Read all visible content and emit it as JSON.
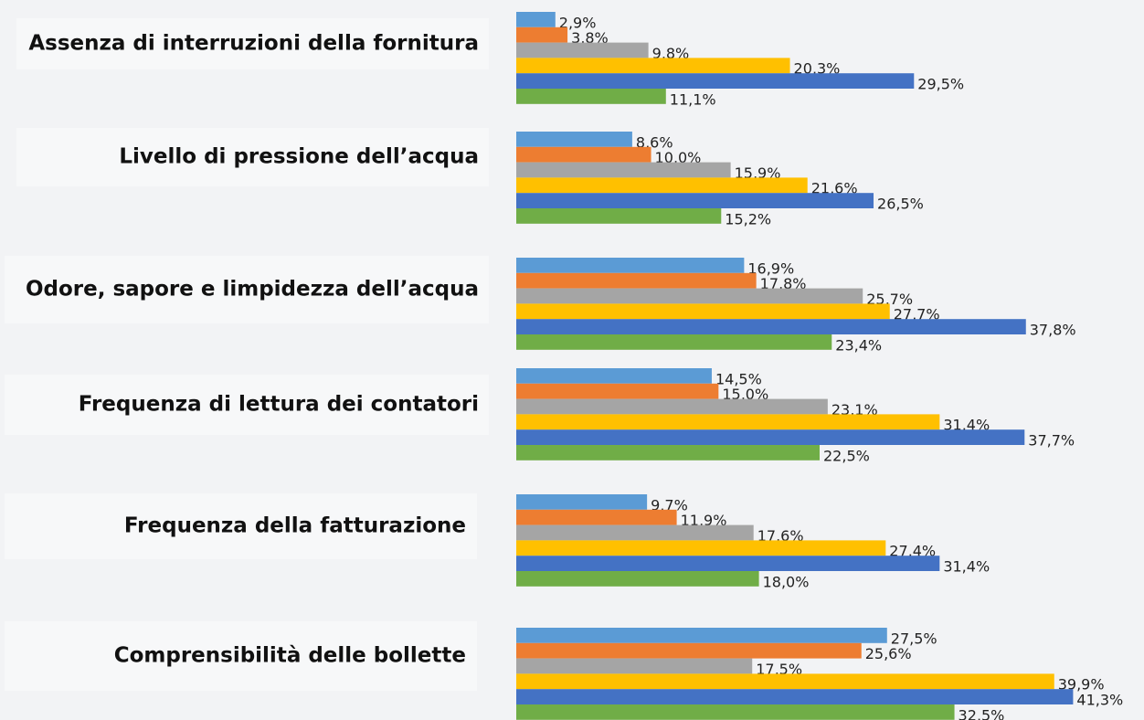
{
  "chart_data": {
    "type": "bar",
    "orientation": "horizontal",
    "categories": [
      "Assenza di interruzioni della fornitura",
      "Livello di pressione dell’acqua",
      "Odore, sapore e limpidezza dell’acqua",
      "Frequenza di lettura dei contatori",
      "Frequenza della fatturazione",
      "Comprensibilità delle bollette"
    ],
    "xlim": [
      0,
      45
    ],
    "series": [
      {
        "color": "#5b9bd5",
        "values": [
          2.9,
          8.6,
          16.9,
          14.5,
          9.7,
          27.5
        ],
        "value_labels": [
          "2,9%",
          "8,6%",
          "16,9%",
          "14,5%",
          "9,7%",
          "27,5%"
        ]
      },
      {
        "color": "#ed7d31",
        "values": [
          3.8,
          10.0,
          17.8,
          15.0,
          11.9,
          25.6
        ],
        "value_labels": [
          "3,8%",
          "10,0%",
          "17,8%",
          "15,0%",
          "11,9%",
          "25,6%"
        ]
      },
      {
        "color": "#a5a5a5",
        "values": [
          9.8,
          15.9,
          25.7,
          23.1,
          17.6,
          17.5
        ],
        "value_labels": [
          "9,8%",
          "15,9%",
          "25,7%",
          "23,1%",
          "17,6%",
          "17,5%"
        ]
      },
      {
        "color": "#ffc000",
        "values": [
          20.3,
          21.6,
          27.7,
          31.4,
          27.4,
          39.9
        ],
        "value_labels": [
          "20,3%",
          "21,6%",
          "27,7%",
          "31,4%",
          "27,4%",
          "39,9%"
        ]
      },
      {
        "color": "#4472c4",
        "values": [
          29.5,
          26.5,
          37.8,
          37.7,
          31.4,
          41.3
        ],
        "value_labels": [
          "29,5%",
          "26,5%",
          "37,8%",
          "37,7%",
          "31,4%",
          "41,3%"
        ]
      },
      {
        "color": "#70ad47",
        "values": [
          11.1,
          15.2,
          23.4,
          22.5,
          18.0,
          32.5
        ],
        "value_labels": [
          "11,1%",
          "15,2%",
          "23,4%",
          "22,5%",
          "18,0%",
          "32,5%"
        ]
      }
    ]
  }
}
